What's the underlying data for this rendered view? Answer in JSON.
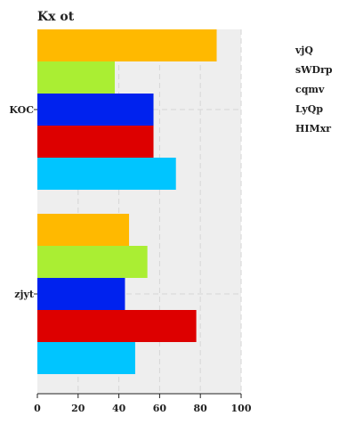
{
  "chart_data": {
    "type": "bar",
    "orientation": "horizontal",
    "title": "Kx ot",
    "xlabel": "",
    "ylabel": "",
    "categories": [
      "KOC",
      "zjyt"
    ],
    "series": [
      {
        "name": "vjQ",
        "color": "#ffb900",
        "values": [
          88,
          45
        ]
      },
      {
        "name": "sWDrp",
        "color": "#aaee33",
        "values": [
          38,
          54
        ]
      },
      {
        "name": "cqmv",
        "color": "#0022ee",
        "values": [
          57,
          43
        ]
      },
      {
        "name": "LyQp",
        "color": "#dd0000",
        "values": [
          57,
          78
        ]
      },
      {
        "name": "HIMxr",
        "color": "#00c5ff",
        "values": [
          68,
          48
        ]
      }
    ],
    "xlim": [
      0,
      100
    ],
    "xticks": [
      0,
      20,
      40,
      60,
      80,
      100
    ],
    "grid": true,
    "legend_position": "top-right",
    "background": "#eeeeee"
  }
}
